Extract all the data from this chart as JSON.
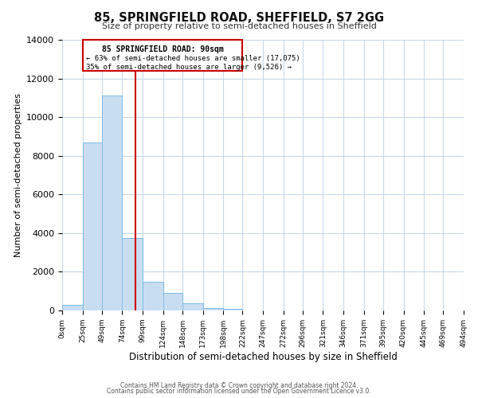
{
  "title": "85, SPRINGFIELD ROAD, SHEFFIELD, S7 2GG",
  "subtitle": "Size of property relative to semi-detached houses in Sheffield",
  "xlabel": "Distribution of semi-detached houses by size in Sheffield",
  "ylabel": "Number of semi-detached properties",
  "bin_labels": [
    "0sqm",
    "25sqm",
    "49sqm",
    "74sqm",
    "99sqm",
    "124sqm",
    "148sqm",
    "173sqm",
    "198sqm",
    "222sqm",
    "247sqm",
    "272sqm",
    "296sqm",
    "321sqm",
    "346sqm",
    "371sqm",
    "395sqm",
    "420sqm",
    "445sqm",
    "469sqm",
    "494sqm"
  ],
  "bin_edges": [
    0,
    25,
    49,
    74,
    99,
    124,
    148,
    173,
    198,
    222,
    247,
    272,
    296,
    321,
    346,
    371,
    395,
    420,
    445,
    469,
    494
  ],
  "bar_heights": [
    300,
    8700,
    11100,
    3750,
    1500,
    900,
    380,
    120,
    75,
    0,
    0,
    0,
    0,
    0,
    0,
    0,
    0,
    0,
    0,
    0
  ],
  "bar_color": "#c9ddf0",
  "bar_edge_color": "#7abbe6",
  "property_size": 90,
  "vline_color": "#cc0000",
  "annotation_box_color": "#cc0000",
  "annotation_line1": "85 SPRINGFIELD ROAD: 90sqm",
  "annotation_line2": "← 63% of semi-detached houses are smaller (17,075)",
  "annotation_line3": "35% of semi-detached houses are larger (9,526) →",
  "ylim": [
    0,
    14000
  ],
  "yticks": [
    0,
    2000,
    4000,
    6000,
    8000,
    10000,
    12000,
    14000
  ],
  "footer_line1": "Contains HM Land Registry data © Crown copyright and database right 2024.",
  "footer_line2": "Contains public sector information licensed under the Open Government Licence v3.0.",
  "background_color": "#ffffff",
  "grid_color": "#c8d8e8"
}
